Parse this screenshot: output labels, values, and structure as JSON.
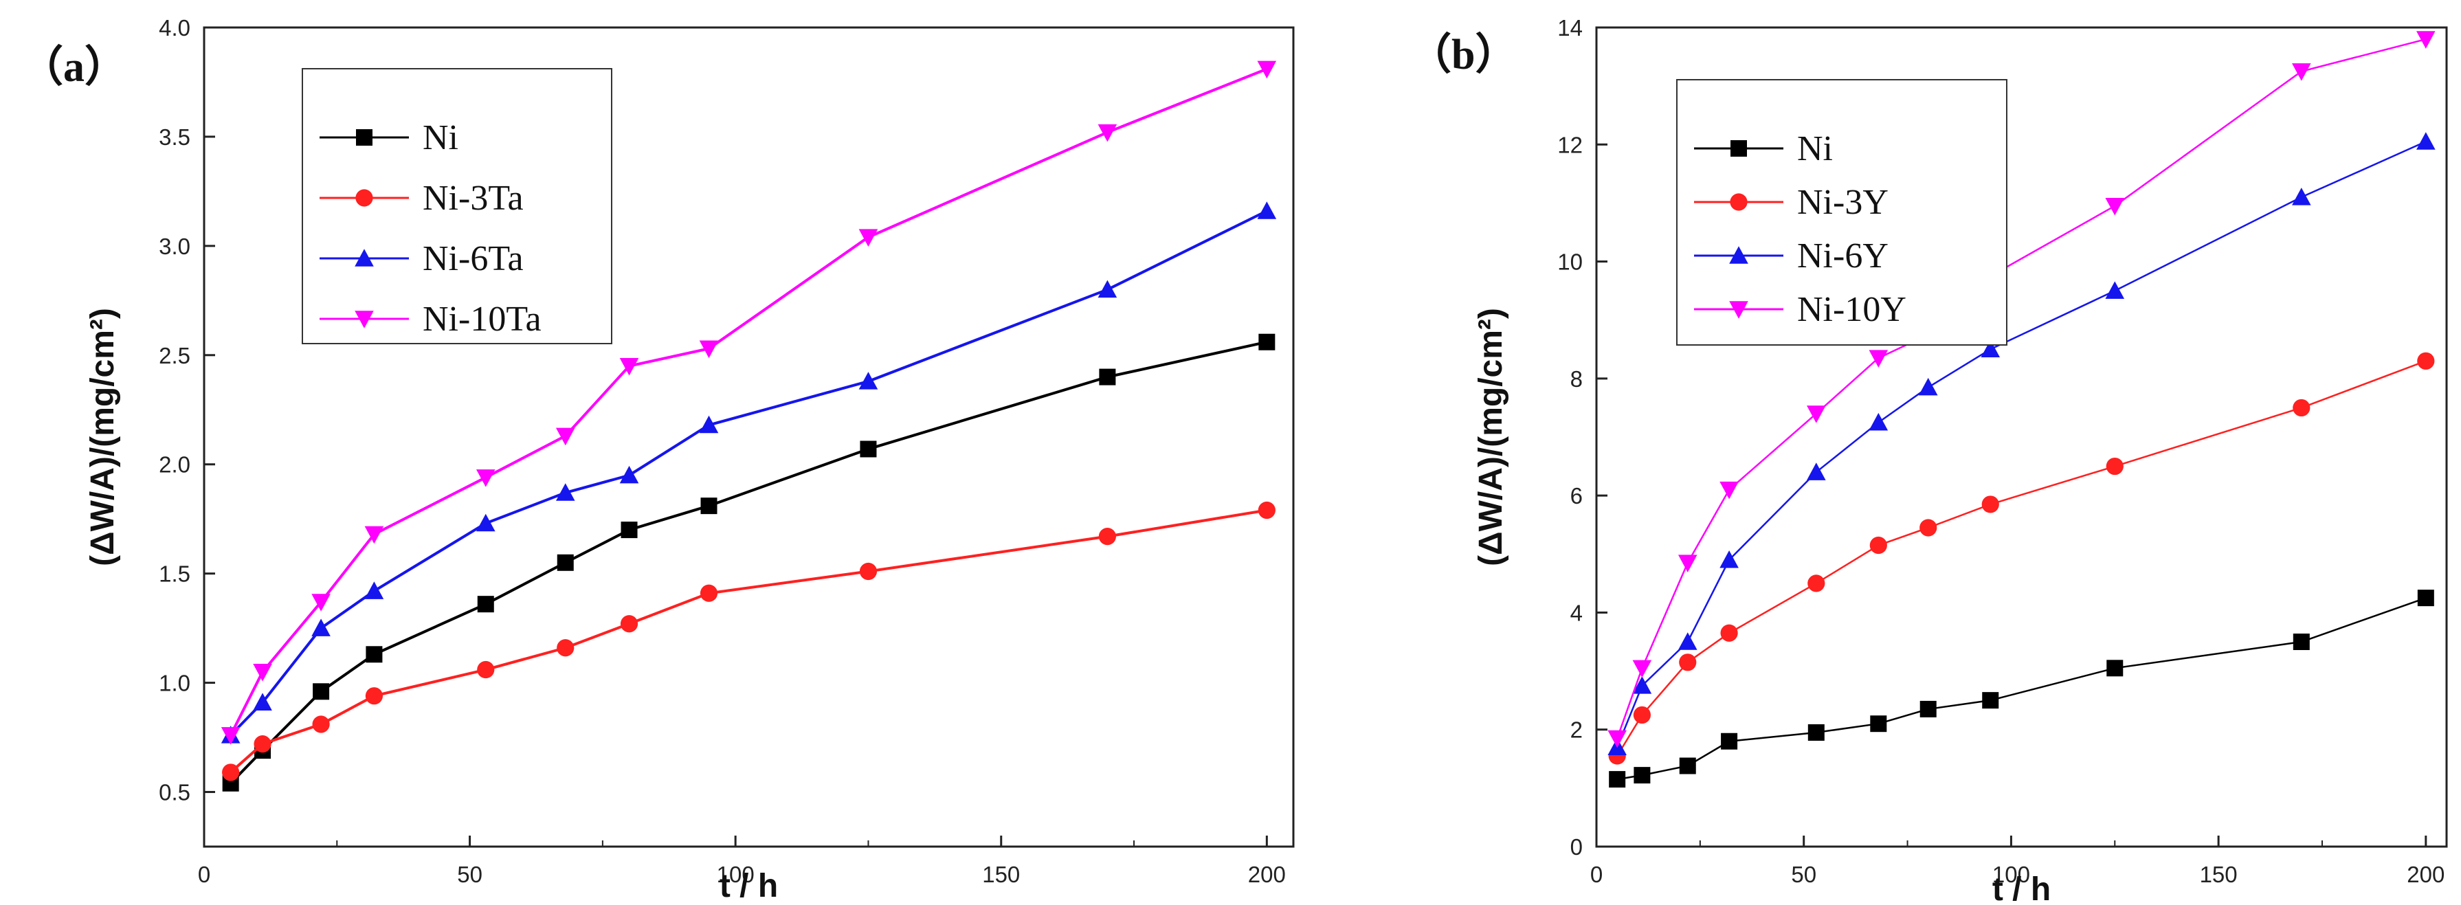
{
  "chart_data": [
    {
      "type": "line",
      "panel_label": "（a）",
      "xlabel": "t / h",
      "ylabel": "(ΔW/A)/(mg/cm²)",
      "xlim": [
        0,
        205
      ],
      "ylim": [
        0.25,
        4.0
      ],
      "xticks": [
        0,
        50,
        100,
        150,
        200
      ],
      "yticks": [
        0.5,
        1.0,
        1.5,
        2.0,
        2.5,
        3.0,
        3.5,
        4.0
      ],
      "ytick_labels": [
        "0.5",
        "1.0",
        "1.5",
        "2.0",
        "2.5",
        "3.0",
        "3.5",
        "4.0"
      ],
      "legend_position": "top-left",
      "x": [
        5,
        11,
        22,
        32,
        53,
        68,
        80,
        95,
        125,
        170,
        200
      ],
      "series": [
        {
          "name": "Ni",
          "color": "#000000",
          "marker": "square",
          "values": [
            0.54,
            0.69,
            0.96,
            1.13,
            1.36,
            1.55,
            1.7,
            1.81,
            2.07,
            2.4,
            2.56
          ]
        },
        {
          "name": "Ni-3Ta",
          "color": "#ff2020",
          "marker": "circle",
          "values": [
            0.59,
            0.72,
            0.81,
            0.94,
            1.06,
            1.16,
            1.27,
            1.41,
            1.51,
            1.67,
            1.79
          ]
        },
        {
          "name": "Ni-6Ta",
          "color": "#1515ee",
          "marker": "triangle-up",
          "values": [
            0.76,
            0.91,
            1.25,
            1.42,
            1.73,
            1.87,
            1.95,
            2.18,
            2.38,
            2.8,
            3.16
          ]
        },
        {
          "name": "Ni-10Ta",
          "color": "#ff00ff",
          "marker": "triangle-down",
          "values": [
            0.76,
            1.05,
            1.37,
            1.68,
            1.94,
            2.13,
            2.45,
            2.53,
            3.04,
            3.52,
            3.81
          ]
        }
      ]
    },
    {
      "type": "line",
      "panel_label": "（b）",
      "xlabel": "t / h",
      "ylabel": "(ΔW/A)/(mg/cm²)",
      "xlim": [
        0,
        205
      ],
      "ylim": [
        0,
        14
      ],
      "xticks": [
        0,
        50,
        100,
        150,
        200
      ],
      "yticks": [
        0,
        2,
        4,
        6,
        8,
        10,
        12,
        14
      ],
      "ytick_labels": [
        "0",
        "2",
        "4",
        "6",
        "8",
        "10",
        "12",
        "14"
      ],
      "legend_position": "top-left",
      "x": [
        5,
        11,
        22,
        32,
        53,
        68,
        80,
        95,
        125,
        170,
        200
      ],
      "series": [
        {
          "name": "Ni",
          "color": "#000000",
          "marker": "square",
          "values": [
            1.15,
            1.22,
            1.38,
            1.8,
            1.95,
            2.1,
            2.35,
            2.5,
            3.05,
            3.5,
            4.25
          ]
        },
        {
          "name": "Ni-3Y",
          "color": "#ff2020",
          "marker": "circle",
          "values": [
            1.55,
            2.25,
            3.15,
            3.65,
            4.5,
            5.15,
            5.45,
            5.85,
            6.5,
            7.5,
            8.3
          ]
        },
        {
          "name": "Ni-6Y",
          "color": "#1515ee",
          "marker": "triangle-up",
          "values": [
            1.7,
            2.75,
            3.5,
            4.9,
            6.4,
            7.25,
            7.85,
            8.5,
            9.5,
            11.1,
            12.05
          ]
        },
        {
          "name": "Ni-10Y",
          "color": "#ff00ff",
          "marker": "triangle-down",
          "values": [
            1.85,
            3.05,
            4.85,
            6.1,
            7.4,
            8.35,
            8.75,
            9.75,
            10.95,
            13.25,
            13.8
          ]
        }
      ]
    }
  ]
}
